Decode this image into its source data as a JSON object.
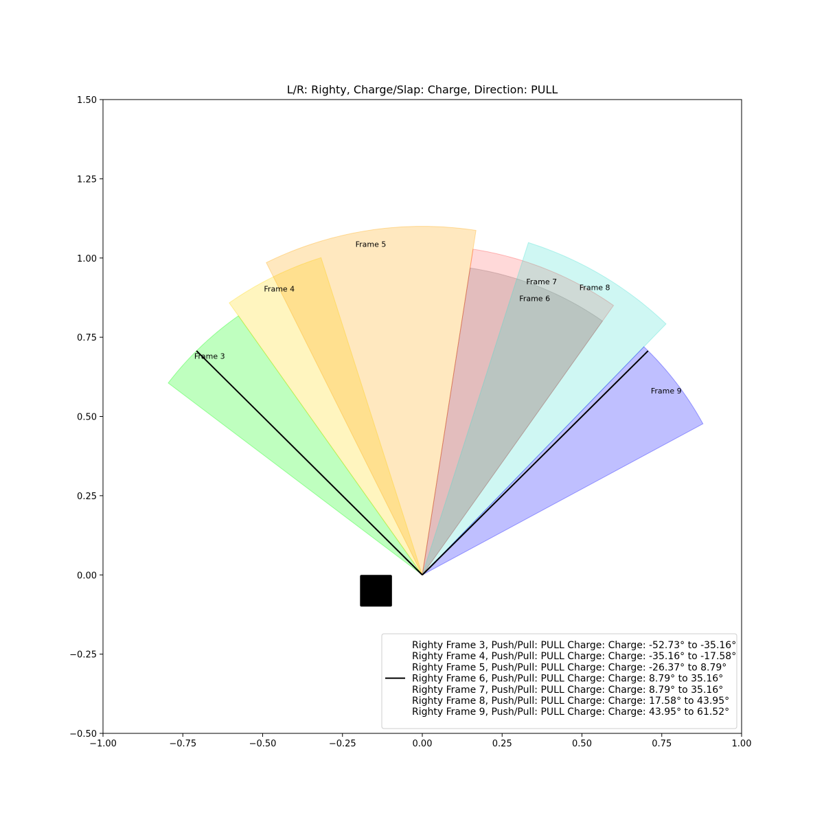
{
  "chart_data": {
    "type": "polar-wedge",
    "title": "L/R: Righty, Charge/Slap: Charge, Direction: PULL",
    "xlim": [
      -1.0,
      1.0
    ],
    "ylim": [
      -0.5,
      1.5
    ],
    "xticks": [
      "−1.00",
      "−0.75",
      "−0.50",
      "−0.25",
      "0.00",
      "0.25",
      "0.50",
      "0.75",
      "1.00"
    ],
    "yticks": [
      "−0.50",
      "−0.25",
      "0.00",
      "0.25",
      "0.50",
      "0.75",
      "1.00",
      "1.25",
      "1.50"
    ],
    "grid": false,
    "legend_position": "lower right",
    "wedges": [
      {
        "label": "Frame 3",
        "start_deg": -52.73,
        "end_deg": -35.16,
        "radius": 1.0,
        "color": "#00ff00",
        "alpha": 0.25
      },
      {
        "label": "Frame 4",
        "start_deg": -35.16,
        "end_deg": -17.58,
        "radius": 1.05,
        "color": "#ffd700",
        "alpha": 0.25
      },
      {
        "label": "Frame 5",
        "start_deg": -26.37,
        "end_deg": 8.79,
        "radius": 1.1,
        "color": "#ffa500",
        "alpha": 0.25
      },
      {
        "label": "Frame 6",
        "start_deg": 8.79,
        "end_deg": 35.16,
        "radius": 0.98,
        "color": "#808080",
        "alpha": 0.25
      },
      {
        "label": "Frame 7",
        "start_deg": 8.79,
        "end_deg": 35.16,
        "radius": 1.04,
        "color": "#ff0000",
        "alpha": 0.15
      },
      {
        "label": "Frame 8",
        "start_deg": 17.58,
        "end_deg": 43.95,
        "radius": 1.1,
        "color": "#40e0d0",
        "alpha": 0.25
      },
      {
        "label": "Frame 9",
        "start_deg": 43.95,
        "end_deg": 61.52,
        "radius": 1.0,
        "color": "#0000ff",
        "alpha": 0.25
      }
    ],
    "lines": [
      {
        "angle_deg": -45.0,
        "length": 1.0
      },
      {
        "angle_deg": 45.0,
        "length": 1.0
      }
    ],
    "marker": {
      "shape": "square",
      "x": -0.145,
      "y": -0.05,
      "size": 0.1,
      "color": "#000000"
    },
    "legend_entries": [
      "Righty Frame 3, Push/Pull: PULL Charge: Charge: -52.73° to -35.16°",
      "Righty Frame 4, Push/Pull: PULL Charge: Charge: -35.16° to -17.58°",
      "Righty Frame 5, Push/Pull: PULL Charge: Charge: -26.37° to 8.79°",
      "Righty Frame 6, Push/Pull: PULL Charge: Charge: 8.79° to 35.16°",
      "Righty Frame 7, Push/Pull: PULL Charge: Charge: 8.79° to 35.16°",
      "Righty Frame 8, Push/Pull: PULL Charge: Charge: 17.58° to 43.95°",
      "Righty Frame 9, Push/Pull: PULL Charge: Charge: 43.95° to 61.52°"
    ],
    "legend_line_entry_index": 3
  }
}
